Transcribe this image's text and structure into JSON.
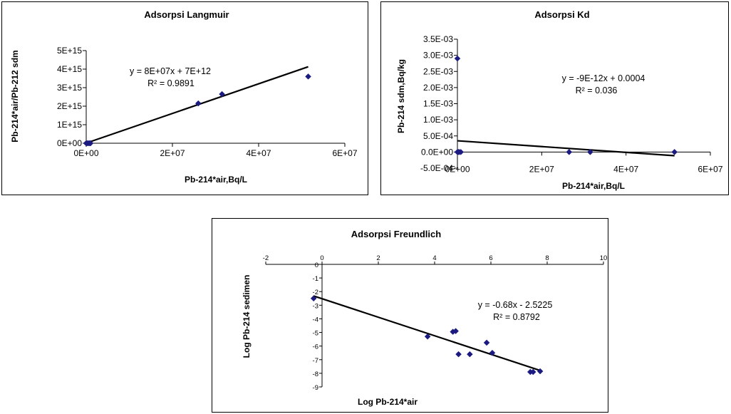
{
  "chart_data": [
    {
      "type": "scatter",
      "title": "Adsorpsi Langmuir",
      "xlabel": "Pb-214*air,Bq/L",
      "ylabel": "Pb-214*air/Pb-212 sdm",
      "xlim": [
        0,
        60000000
      ],
      "ylim": [
        0,
        5000000000000000
      ],
      "xticks": [
        0,
        20000000,
        40000000,
        60000000
      ],
      "xtick_labels": [
        "0E+00",
        "2E+07",
        "4E+07",
        "6E+07"
      ],
      "yticks": [
        0,
        1000000000000000,
        2000000000000000,
        3000000000000000,
        4000000000000000,
        5000000000000000
      ],
      "ytick_labels": [
        "0E+00",
        "1E+15",
        "2E+15",
        "3E+15",
        "4E+15",
        "5E+15"
      ],
      "series": [
        {
          "points": [
            [
              0,
              0
            ],
            [
              200000,
              0
            ],
            [
              500000,
              0
            ],
            [
              800000,
              0
            ],
            [
              1000000,
              0
            ],
            [
              26000000,
              2150000000000000
            ],
            [
              31500000,
              2650000000000000
            ],
            [
              51500000,
              3600000000000000
            ]
          ]
        }
      ],
      "trendline": {
        "slope": 80000000,
        "intercept": 7000000000000,
        "x_range": [
          0,
          51500000
        ]
      },
      "equation": "y = 8E+07x + 7E+12",
      "r2": "R² = 0.9891",
      "grid": false,
      "marker_color": "#1a1a80"
    },
    {
      "type": "scatter",
      "title": "Adsorpsi Kd",
      "xlabel": "Pb-214*air,Bq/L",
      "ylabel": "Pb-214 sdm,Bq/kg",
      "xlim": [
        0,
        60000000
      ],
      "ylim": [
        -0.0005,
        0.0035
      ],
      "xticks": [
        0,
        20000000,
        40000000,
        60000000
      ],
      "xtick_labels": [
        "0E+00",
        "2E+07",
        "4E+07",
        "6E+07"
      ],
      "yticks": [
        -0.0005,
        0,
        0.0005,
        0.001,
        0.0015,
        0.002,
        0.0025,
        0.003,
        0.0035
      ],
      "ytick_labels": [
        "-5.0E-04",
        "0.0E+00",
        "5.0E-04",
        "1.0E-03",
        "1.5E-03",
        "2.0E-03",
        "2.5E-03",
        "3.0E-03",
        "3.5E-03"
      ],
      "series": [
        {
          "points": [
            [
              0,
              0.0029
            ],
            [
              0,
              0
            ],
            [
              200000,
              0
            ],
            [
              400000,
              0
            ],
            [
              800000,
              0
            ],
            [
              26500000,
              0
            ],
            [
              31500000,
              0
            ],
            [
              51500000,
              0
            ]
          ]
        }
      ],
      "trendline": {
        "slope": -9e-12,
        "intercept": 0.00035,
        "x_range": [
          0,
          51500000
        ]
      },
      "equation": "y = -9E-12x + 0.0004",
      "r2": "R² = 0.036",
      "grid": false,
      "marker_color": "#1a1a80"
    },
    {
      "type": "scatter",
      "title": "Adsorpsi Freundlich",
      "xlabel": "Log Pb-214*air",
      "ylabel": "Log Pb-214 sedimen",
      "xlim": [
        -2,
        10
      ],
      "ylim": [
        -9,
        0
      ],
      "xticks": [
        -2,
        0,
        2,
        4,
        6,
        8,
        10
      ],
      "xtick_labels": [
        "-2",
        "0",
        "2",
        "4",
        "6",
        "8",
        "10"
      ],
      "yticks": [
        0,
        -1,
        -2,
        -3,
        -4,
        -5,
        -6,
        -7,
        -8,
        -9
      ],
      "ytick_labels": [
        "0",
        "-1",
        "-2",
        "-3",
        "-4",
        "-5",
        "-6",
        "-7",
        "-8",
        "-9"
      ],
      "series": [
        {
          "points": [
            [
              -0.3,
              -2.5
            ],
            [
              3.75,
              -5.3
            ],
            [
              4.65,
              -4.95
            ],
            [
              4.75,
              -4.9
            ],
            [
              4.85,
              -6.6
            ],
            [
              5.25,
              -6.6
            ],
            [
              5.85,
              -5.75
            ],
            [
              6.05,
              -6.5
            ],
            [
              7.4,
              -7.9
            ],
            [
              7.5,
              -7.9
            ],
            [
              7.75,
              -7.85
            ]
          ]
        }
      ],
      "trendline": {
        "slope": -0.68,
        "intercept": -2.5225,
        "x_range": [
          -0.3,
          7.75
        ]
      },
      "equation": "y = -0.68x - 2.5225",
      "r2": "R² = 0.8792",
      "grid": false,
      "marker_color": "#1a1a80"
    }
  ]
}
